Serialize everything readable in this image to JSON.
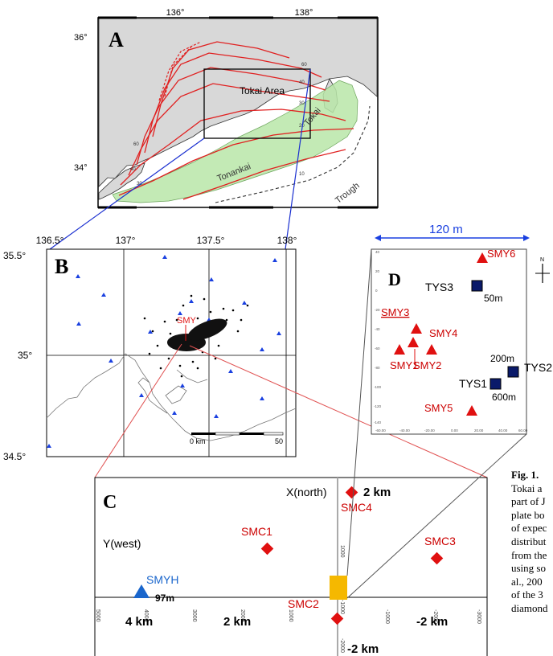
{
  "panel_a": {
    "label": "A",
    "lon_ticks": [
      "136°",
      "138°"
    ],
    "lat_ticks": [
      "36°",
      "34°"
    ],
    "area_label": "Tokai Area",
    "region_labels": [
      "Tokai",
      "Tonankai",
      "Trough"
    ],
    "contour_labels": [
      "60",
      "40",
      "30",
      "20",
      "10",
      "60",
      "40",
      "30"
    ]
  },
  "panel_b": {
    "label": "B",
    "lon_ticks": [
      "136.5°",
      "137°",
      "137.5°",
      "138°"
    ],
    "lat_ticks": [
      "35.5°",
      "35°",
      "34.5°"
    ],
    "site_label": "SMY",
    "scale": {
      "start": "0 km",
      "end": "50"
    }
  },
  "panel_c": {
    "label": "C",
    "x_axis": "X(north)",
    "y_axis": "Y(west)",
    "distance_labels": [
      "2 km",
      "4 km",
      "2 km",
      "-2 km",
      "-2 km"
    ],
    "tick_labels": [
      "5000",
      "4000",
      "3000",
      "2000",
      "1000",
      "-1000",
      "-2000",
      "-3000",
      "1000",
      "-1000",
      "-2000"
    ],
    "stations": [
      {
        "name": "SMC1",
        "color": "#cc0000"
      },
      {
        "name": "SMC2",
        "color": "#cc0000"
      },
      {
        "name": "SMC3",
        "color": "#cc0000"
      },
      {
        "name": "SMC4",
        "color": "#cc0000"
      }
    ],
    "borehole": {
      "name": "SMYH",
      "depth": "97m",
      "color": "#1a66cc"
    }
  },
  "panel_d": {
    "label": "D",
    "width_label": "120 m",
    "north": "N",
    "stations": [
      "SMY1",
      "SMY2",
      "SMY3",
      "SMY4",
      "SMY5",
      "SMY6"
    ],
    "boreholes": [
      {
        "name": "TYS1",
        "depth": "600m"
      },
      {
        "name": "TYS2",
        "depth": "200m"
      },
      {
        "name": "TYS3",
        "depth": "50m"
      }
    ],
    "y_ticks": [
      "40",
      "20",
      "0",
      "-20",
      "-40",
      "-60",
      "-80",
      "-100",
      "-120",
      "-140"
    ],
    "x_ticks": [
      "-60.00",
      "-40.00",
      "-20.00",
      "0.00",
      "20.00",
      "40.00",
      "60.00"
    ]
  },
  "caption": {
    "title": "Fig. 1.",
    "lines": [
      "Tokai a",
      "part of J",
      "plate bo",
      "of expec",
      "distribut",
      "from the",
      "using so",
      "al., 200",
      "of the 3",
      "diamond"
    ]
  },
  "colors": {
    "station_red": "#e01010",
    "station_blue": "#1a40e0",
    "land": "#d8d8d8",
    "source_zone": "#b9e6a8",
    "contour": "#e02020",
    "site_square": "#f5b800"
  }
}
